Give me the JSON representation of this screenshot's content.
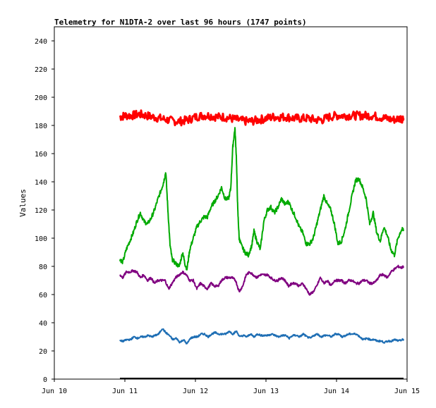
{
  "chart_data": {
    "type": "line",
    "title": "Telemetry for N1DTA-2 over last 96 hours (1747 points)",
    "xlabel": "",
    "ylabel": "Values",
    "x_ticks": [
      "Jun 10",
      "Jun 11",
      "Jun 12",
      "Jun 13",
      "Jun 14",
      "Jun 15"
    ],
    "xlim": [
      0,
      5
    ],
    "ylim": [
      0,
      250
    ],
    "y_ticks": [
      0,
      20,
      40,
      60,
      80,
      100,
      120,
      140,
      160,
      180,
      200,
      220,
      240
    ],
    "grid": false,
    "legend": "none",
    "series": [
      {
        "color": "#ff0000",
        "x": [
          0.93,
          1.0,
          1.1,
          1.2,
          1.3,
          1.4,
          1.5,
          1.6,
          1.7,
          1.8,
          1.9,
          2.0,
          2.1,
          2.2,
          2.3,
          2.4,
          2.5,
          2.6,
          2.7,
          2.8,
          2.9,
          3.0,
          3.1,
          3.2,
          3.3,
          3.4,
          3.5,
          3.6,
          3.7,
          3.8,
          3.9,
          4.0,
          4.1,
          4.2,
          4.3,
          4.4,
          4.5,
          4.6,
          4.7,
          4.8,
          4.9,
          4.95
        ],
        "y": [
          186,
          187,
          187,
          188,
          187,
          186,
          185,
          184,
          183,
          183,
          184,
          186,
          187,
          187,
          186,
          186,
          185,
          184,
          183,
          183,
          184,
          185,
          186,
          186,
          186,
          185,
          185,
          185,
          184,
          184,
          186,
          187,
          187,
          187,
          187,
          187,
          187,
          186,
          185,
          184,
          185,
          185
        ]
      },
      {
        "color": "#00aa00",
        "x": [
          0.93,
          0.97,
          1.02,
          1.07,
          1.12,
          1.17,
          1.22,
          1.27,
          1.32,
          1.37,
          1.42,
          1.47,
          1.52,
          1.55,
          1.58,
          1.61,
          1.64,
          1.67,
          1.72,
          1.77,
          1.82,
          1.85,
          1.88,
          1.92,
          1.97,
          2.02,
          2.07,
          2.12,
          2.17,
          2.22,
          2.27,
          2.32,
          2.37,
          2.42,
          2.47,
          2.5,
          2.53,
          2.56,
          2.58,
          2.6,
          2.62,
          2.65,
          2.7,
          2.75,
          2.8,
          2.83,
          2.87,
          2.92,
          2.97,
          3.02,
          3.07,
          3.12,
          3.17,
          3.22,
          3.27,
          3.32,
          3.37,
          3.42,
          3.47,
          3.52,
          3.57,
          3.62,
          3.67,
          3.72,
          3.77,
          3.82,
          3.87,
          3.92,
          3.97,
          4.02,
          4.07,
          4.12,
          4.17,
          4.22,
          4.27,
          4.32,
          4.37,
          4.42,
          4.47,
          4.52,
          4.57,
          4.62,
          4.67,
          4.72,
          4.77,
          4.82,
          4.87,
          4.92,
          4.95
        ],
        "y": [
          85,
          83,
          92,
          98,
          104,
          112,
          118,
          112,
          110,
          114,
          120,
          128,
          135,
          140,
          147,
          120,
          95,
          85,
          82,
          80,
          90,
          82,
          78,
          92,
          100,
          108,
          112,
          115,
          115,
          122,
          126,
          130,
          136,
          128,
          128,
          135,
          165,
          178,
          158,
          120,
          100,
          95,
          90,
          88,
          95,
          105,
          98,
          92,
          112,
          120,
          122,
          118,
          122,
          128,
          124,
          126,
          120,
          115,
          108,
          104,
          96,
          96,
          100,
          110,
          120,
          130,
          124,
          120,
          110,
          96,
          98,
          106,
          118,
          130,
          141,
          142,
          136,
          128,
          110,
          118,
          104,
          98,
          108,
          102,
          92,
          88,
          100,
          106,
          106
        ]
      },
      {
        "color": "#800080",
        "x": [
          0.93,
          0.97,
          1.02,
          1.07,
          1.12,
          1.17,
          1.22,
          1.27,
          1.32,
          1.37,
          1.42,
          1.47,
          1.52,
          1.57,
          1.62,
          1.67,
          1.72,
          1.77,
          1.82,
          1.87,
          1.92,
          1.97,
          2.02,
          2.07,
          2.12,
          2.17,
          2.22,
          2.27,
          2.32,
          2.37,
          2.42,
          2.47,
          2.52,
          2.57,
          2.62,
          2.67,
          2.72,
          2.77,
          2.82,
          2.87,
          2.92,
          2.97,
          3.02,
          3.07,
          3.12,
          3.17,
          3.22,
          3.27,
          3.32,
          3.37,
          3.42,
          3.47,
          3.52,
          3.57,
          3.62,
          3.67,
          3.72,
          3.77,
          3.82,
          3.87,
          3.92,
          3.97,
          4.02,
          4.07,
          4.12,
          4.17,
          4.22,
          4.27,
          4.32,
          4.37,
          4.42,
          4.47,
          4.52,
          4.57,
          4.62,
          4.67,
          4.72,
          4.77,
          4.82,
          4.87,
          4.92,
          4.95
        ],
        "y": [
          74,
          72,
          76,
          76,
          77,
          76,
          72,
          74,
          70,
          72,
          68,
          70,
          70,
          70,
          64,
          68,
          72,
          74,
          76,
          74,
          70,
          70,
          64,
          68,
          66,
          64,
          68,
          66,
          66,
          70,
          72,
          72,
          72,
          70,
          62,
          66,
          74,
          76,
          74,
          72,
          74,
          74,
          74,
          72,
          70,
          70,
          72,
          70,
          66,
          68,
          68,
          66,
          68,
          64,
          60,
          62,
          66,
          72,
          68,
          70,
          66,
          70,
          70,
          70,
          68,
          70,
          70,
          68,
          68,
          70,
          70,
          68,
          68,
          70,
          74,
          74,
          72,
          76,
          78,
          80,
          79,
          80
        ]
      },
      {
        "color": "#1e6eb4",
        "x": [
          0.93,
          0.98,
          1.03,
          1.08,
          1.13,
          1.18,
          1.23,
          1.28,
          1.33,
          1.38,
          1.43,
          1.48,
          1.53,
          1.58,
          1.63,
          1.68,
          1.73,
          1.78,
          1.83,
          1.88,
          1.93,
          1.98,
          2.03,
          2.08,
          2.13,
          2.18,
          2.23,
          2.28,
          2.33,
          2.38,
          2.43,
          2.48,
          2.53,
          2.58,
          2.63,
          2.68,
          2.73,
          2.78,
          2.83,
          2.88,
          2.93,
          2.98,
          3.03,
          3.08,
          3.13,
          3.18,
          3.23,
          3.28,
          3.33,
          3.38,
          3.43,
          3.48,
          3.53,
          3.58,
          3.63,
          3.68,
          3.73,
          3.78,
          3.83,
          3.88,
          3.93,
          3.98,
          4.03,
          4.08,
          4.13,
          4.18,
          4.23,
          4.28,
          4.33,
          4.38,
          4.43,
          4.48,
          4.53,
          4.58,
          4.63,
          4.68,
          4.73,
          4.78,
          4.83,
          4.88,
          4.93,
          4.95
        ],
        "y": [
          27,
          27,
          28,
          28,
          30,
          29,
          30,
          30,
          31,
          30,
          31,
          32,
          36,
          33,
          31,
          28,
          29,
          26,
          28,
          25,
          29,
          30,
          30,
          32,
          32,
          30,
          32,
          33,
          32,
          32,
          32,
          34,
          32,
          34,
          30,
          31,
          30,
          32,
          30,
          32,
          31,
          31,
          31,
          32,
          31,
          30,
          31,
          31,
          29,
          31,
          31,
          30,
          32,
          30,
          29,
          31,
          32,
          30,
          31,
          31,
          30,
          32,
          32,
          30,
          31,
          32,
          32,
          32,
          30,
          28,
          29,
          28,
          28,
          27,
          27,
          26,
          27,
          27,
          28,
          27,
          28,
          28
        ]
      }
    ]
  }
}
